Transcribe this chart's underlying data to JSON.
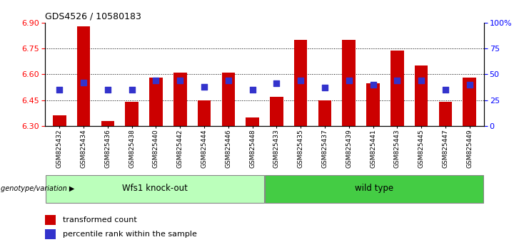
{
  "title": "GDS4526 / 10580183",
  "samples": [
    "GSM825432",
    "GSM825434",
    "GSM825436",
    "GSM825438",
    "GSM825440",
    "GSM825442",
    "GSM825444",
    "GSM825446",
    "GSM825448",
    "GSM825433",
    "GSM825435",
    "GSM825437",
    "GSM825439",
    "GSM825441",
    "GSM825443",
    "GSM825445",
    "GSM825447",
    "GSM825449"
  ],
  "red_values": [
    6.36,
    6.88,
    6.33,
    6.44,
    6.58,
    6.61,
    6.45,
    6.61,
    6.35,
    6.47,
    6.8,
    6.45,
    6.8,
    6.55,
    6.74,
    6.65,
    6.44,
    6.58
  ],
  "blue_values": [
    35,
    42,
    35,
    35,
    44,
    44,
    38,
    44,
    35,
    41,
    44,
    37,
    44,
    40,
    44,
    44,
    35,
    40
  ],
  "ylim_left": [
    6.3,
    6.9
  ],
  "ylim_right": [
    0,
    100
  ],
  "yticks_left": [
    6.3,
    6.45,
    6.6,
    6.75,
    6.9
  ],
  "yticks_right": [
    0,
    25,
    50,
    75,
    100
  ],
  "ytick_labels_right": [
    "0",
    "25",
    "50",
    "75",
    "100%"
  ],
  "grid_values": [
    6.45,
    6.6,
    6.75
  ],
  "group1_label": "Wfs1 knock-out",
  "group2_label": "wild type",
  "group1_count": 9,
  "group2_count": 9,
  "genotype_label": "genotype/variation",
  "legend_red": "transformed count",
  "legend_blue": "percentile rank within the sample",
  "bar_color": "#CC0000",
  "blue_color": "#3333CC",
  "group1_bg": "#BBFFBB",
  "group2_bg": "#44CC44",
  "bar_bottom": 6.3,
  "bar_width": 0.55,
  "blue_marker_size": 36
}
